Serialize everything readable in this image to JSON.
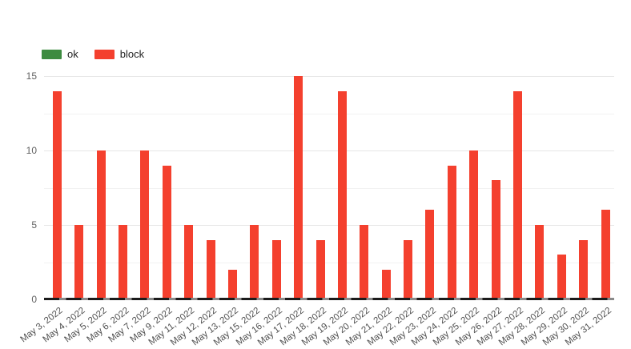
{
  "chart_data": {
    "type": "bar",
    "title": "",
    "xlabel": "",
    "ylabel": "",
    "categories": [
      "May 3, 2022",
      "May 4, 2022",
      "May 5, 2022",
      "May 6, 2022",
      "May 7, 2022",
      "May 9, 2022",
      "May 11, 2022",
      "May 12, 2022",
      "May 13, 2022",
      "May 15, 2022",
      "May 16, 2022",
      "May 17, 2022",
      "May 18, 2022",
      "May 19, 2022",
      "May 20, 2022",
      "May 21, 2022",
      "May 22, 2022",
      "May 23, 2022",
      "May 24, 2022",
      "May 25, 2022",
      "May 26, 2022",
      "May 27, 2022",
      "May 28, 2022",
      "May 29, 2022",
      "May 30, 2022",
      "May 31, 2022"
    ],
    "series": [
      {
        "name": "ok",
        "color": "#3d8b40",
        "values": [
          0,
          0,
          0,
          0,
          0,
          0,
          0,
          0,
          0,
          0,
          0,
          0,
          0,
          0,
          0,
          0,
          0,
          0,
          0,
          0,
          0,
          0,
          0,
          0,
          0,
          0
        ]
      },
      {
        "name": "block",
        "color": "#f4402e",
        "values": [
          14,
          5,
          10,
          5,
          10,
          9,
          5,
          4,
          2,
          5,
          4,
          15,
          4,
          14,
          5,
          2,
          4,
          6,
          9,
          10,
          8,
          14,
          5,
          3,
          4,
          6
        ]
      }
    ],
    "ylim": [
      0,
      15
    ],
    "yticks": [
      0,
      5,
      10,
      15
    ],
    "minor_gridlines": [
      2.5,
      7.5,
      12.5
    ],
    "grid": true,
    "legend_position": "top-left",
    "colors": {
      "gridline_major": "#e6e6e6",
      "gridline_minor": "#f2f2f2",
      "baseline_dark": "#1b1b1b",
      "baseline_gap": "#8a8a8a",
      "y_tick_text": "#616161",
      "x_tick_text": "#4f4f4f",
      "legend_text": "#222222",
      "background": "#ffffff"
    }
  }
}
